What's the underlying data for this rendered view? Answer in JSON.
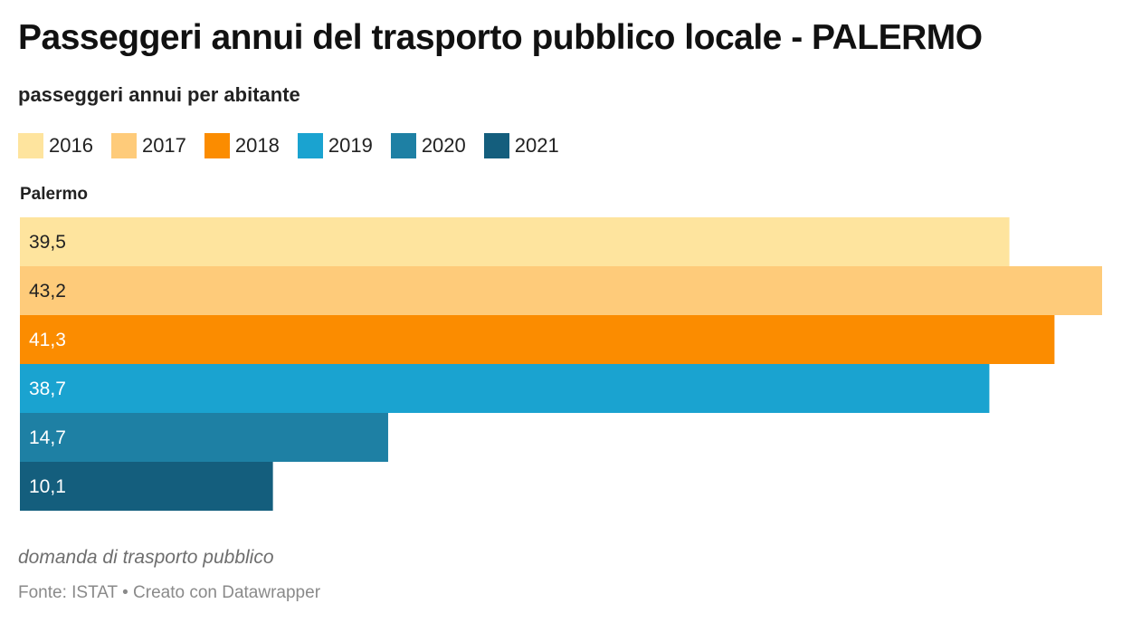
{
  "header": {
    "title": "Passeggeri annui del trasporto pubblico locale - PALERMO",
    "subtitle": "passeggeri annui per abitante"
  },
  "footer": {
    "caption": "domanda di trasporto pubblico",
    "source": "Fonte: ISTAT • Creato con Datawrapper"
  },
  "chart_data": {
    "type": "bar",
    "orientation": "horizontal",
    "title": "Passeggeri annui del trasporto pubblico locale - PALERMO",
    "subtitle": "passeggeri annui per abitante",
    "categories": [
      "Palermo"
    ],
    "legend_position": "top-left",
    "grid": false,
    "xlim": [
      0,
      43.2
    ],
    "series": [
      {
        "name": "2016",
        "values": [
          39.5
        ],
        "label": "39,5",
        "color": "#fee49e",
        "text_color": "#222222"
      },
      {
        "name": "2017",
        "values": [
          43.2
        ],
        "label": "43,2",
        "color": "#fecb7a",
        "text_color": "#222222"
      },
      {
        "name": "2018",
        "values": [
          41.3
        ],
        "label": "41,3",
        "color": "#fb8c00",
        "text_color": "#ffffff"
      },
      {
        "name": "2019",
        "values": [
          38.7
        ],
        "label": "38,7",
        "color": "#1aa3d0",
        "text_color": "#ffffff"
      },
      {
        "name": "2020",
        "values": [
          14.7
        ],
        "label": "14,7",
        "color": "#1e80a4",
        "text_color": "#ffffff"
      },
      {
        "name": "2021",
        "values": [
          10.1
        ],
        "label": "10,1",
        "color": "#145e7d",
        "text_color": "#ffffff"
      }
    ]
  }
}
